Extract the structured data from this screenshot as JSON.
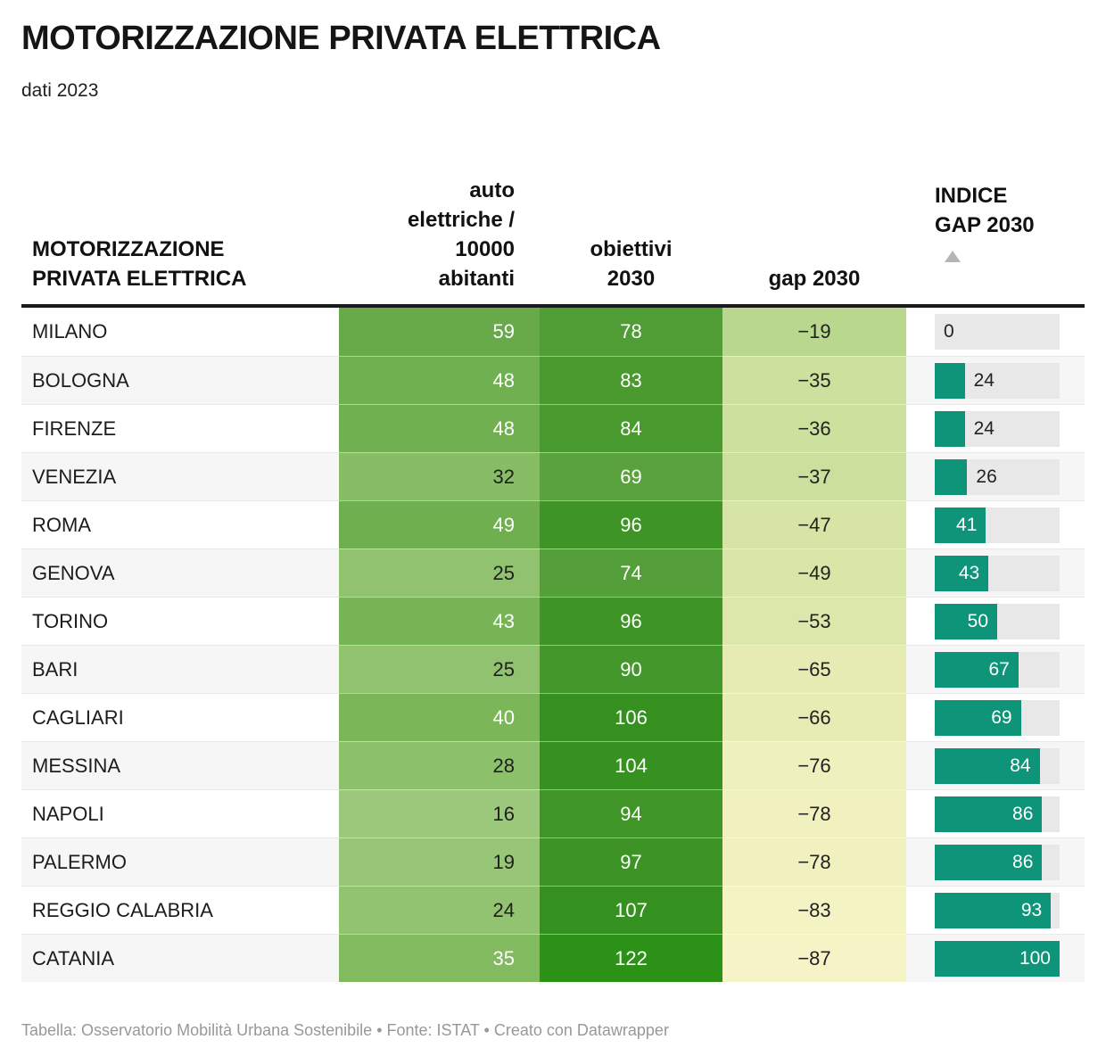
{
  "title": "MOTORIZZAZIONE PRIVATA ELETTRICA",
  "subtitle": "dati 2023",
  "footer": "Tabella: Osservatorio Mobilità Urbana Sostenibile • Fonte: ISTAT • Creato con Datawrapper",
  "columns": {
    "city": "MOTORIZZAZIONE\nPRIVATA ELETTRICA",
    "auto": "auto\nelettriche /\n10000\nabitanti",
    "obiettivi": "obiettivi\n2030",
    "gap": "gap 2030",
    "indice": "INDICE\nGAP 2030"
  },
  "sort": {
    "column": "INDICE GAP 2030",
    "direction": "ascending"
  },
  "colors": {
    "bar": "#0e9479",
    "bar_track": "#e8e8e8",
    "bar_label_inside": "#ffffff",
    "bar_label_outside": "#222222",
    "header_border": "#1a1a1a",
    "alt_row_bg": "#f6f6f6"
  },
  "chart_data": {
    "type": "table",
    "title": "MOTORIZZAZIONE PRIVATA ELETTRICA",
    "subtitle": "dati 2023",
    "columns": [
      "MOTORIZZAZIONE PRIVATA ELETTRICA",
      "auto elettriche / 10000 abitanti",
      "obiettivi 2030",
      "gap 2030",
      "INDICE GAP 2030"
    ],
    "bar_axis": {
      "min": 0,
      "max": 100
    },
    "rows": [
      {
        "city": "MILANO",
        "auto": "59",
        "auto_bg": "#68aa49",
        "auto_fg": "#ffffff",
        "ob": "78",
        "ob_bg": "#509d35",
        "gap": "−19",
        "gap_bg": "#b9d88e",
        "indice": 0
      },
      {
        "city": "BOLOGNA",
        "auto": "48",
        "auto_bg": "#71b051",
        "auto_fg": "#ffffff",
        "ob": "83",
        "ob_bg": "#4a9a30",
        "gap": "−35",
        "gap_bg": "#cde19e",
        "indice": 24
      },
      {
        "city": "FIRENZE",
        "auto": "48",
        "auto_bg": "#71b051",
        "auto_fg": "#ffffff",
        "ob": "84",
        "ob_bg": "#499a2f",
        "gap": "−36",
        "gap_bg": "#cce19d",
        "indice": 24
      },
      {
        "city": "VENEZIA",
        "auto": "32",
        "auto_bg": "#86bd65",
        "auto_fg": "#1f1f1f",
        "ob": "69",
        "ob_bg": "#5aa23e",
        "gap": "−37",
        "gap_bg": "#cbe09c",
        "indice": 26
      },
      {
        "city": "ROMA",
        "auto": "49",
        "auto_bg": "#70af50",
        "auto_fg": "#ffffff",
        "ob": "96",
        "ob_bg": "#3e9526",
        "gap": "−47",
        "gap_bg": "#d6e5a6",
        "indice": 41
      },
      {
        "city": "GENOVA",
        "auto": "25",
        "auto_bg": "#90c26f",
        "auto_fg": "#1f1f1f",
        "ob": "74",
        "ob_bg": "#549f39",
        "gap": "−49",
        "gap_bg": "#d8e6a8",
        "indice": 43
      },
      {
        "city": "TORINO",
        "auto": "43",
        "auto_bg": "#77b455",
        "auto_fg": "#ffffff",
        "ob": "96",
        "ob_bg": "#3e9526",
        "gap": "−53",
        "gap_bg": "#dce8ab",
        "indice": 50
      },
      {
        "city": "BARI",
        "auto": "25",
        "auto_bg": "#90c26f",
        "auto_fg": "#1f1f1f",
        "ob": "90",
        "ob_bg": "#43972b",
        "gap": "−65",
        "gap_bg": "#e5ebb3",
        "indice": 67
      },
      {
        "city": "CAGLIARI",
        "auto": "40",
        "auto_bg": "#7bb659",
        "auto_fg": "#ffffff",
        "ob": "106",
        "ob_bg": "#359020",
        "gap": "−66",
        "gap_bg": "#e6ecb4",
        "indice": 69
      },
      {
        "city": "MESSINA",
        "auto": "28",
        "auto_bg": "#8cc06b",
        "auto_fg": "#1f1f1f",
        "ob": "104",
        "ob_bg": "#369121",
        "gap": "−76",
        "gap_bg": "#eef0bd",
        "indice": 84
      },
      {
        "city": "NAPOLI",
        "auto": "16",
        "auto_bg": "#9bc87a",
        "auto_fg": "#1f1f1f",
        "ob": "94",
        "ob_bg": "#3f9527",
        "gap": "−78",
        "gap_bg": "#f0f1bf",
        "indice": 86
      },
      {
        "city": "PALERMO",
        "auto": "19",
        "auto_bg": "#97c676",
        "auto_fg": "#1f1f1f",
        "ob": "97",
        "ob_bg": "#3d9425",
        "gap": "−78",
        "gap_bg": "#f0f1bf",
        "indice": 86
      },
      {
        "city": "REGGIO CALABRIA",
        "auto": "24",
        "auto_bg": "#92c370",
        "auto_fg": "#1f1f1f",
        "ob": "107",
        "ob_bg": "#34901f",
        "gap": "−83",
        "gap_bg": "#f3f3c3",
        "indice": 93
      },
      {
        "city": "CATANIA",
        "auto": "35",
        "auto_bg": "#82ba60",
        "auto_fg": "#ffffff",
        "ob": "122",
        "ob_bg": "#2c9117",
        "gap": "−87",
        "gap_bg": "#f6f4c6",
        "indice": 100
      }
    ]
  }
}
